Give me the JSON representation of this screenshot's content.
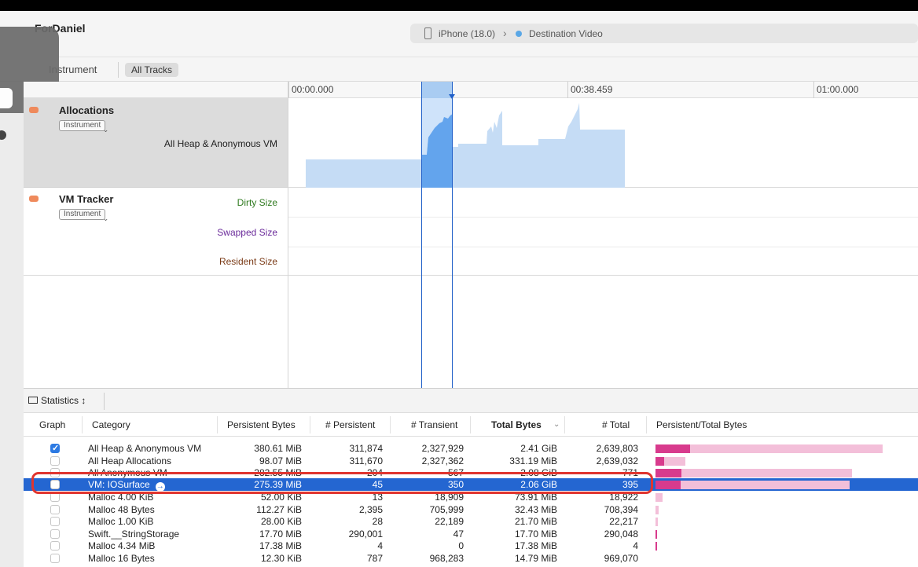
{
  "window": {
    "project_title": "ForDaniel",
    "device": "iPhone (18.0)",
    "target": "Destination Video"
  },
  "toolbar": {
    "instrument_tab": "Instrument",
    "all_tracks_tab": "All Tracks"
  },
  "ruler": {
    "labels": [
      "00:00.000",
      "00:38.459",
      "01:00.000"
    ]
  },
  "tracks": [
    {
      "title": "Allocations",
      "instrument_dropdown": "Instrument",
      "sublabels": [
        "All Heap & Anonymous VM"
      ],
      "color": "#ef8a5c"
    },
    {
      "title": "VM Tracker",
      "instrument_dropdown": "Instrument",
      "sublabels": [
        "Dirty Size",
        "Swapped Size",
        "Resident Size"
      ],
      "sublabel_colors": [
        "#2f7a1f",
        "#6a2a9a",
        "#7a3a16"
      ],
      "color": "#ef8a5c"
    }
  ],
  "stats": {
    "view_button": "Statistics",
    "columns": [
      "Graph",
      "Category",
      "Persistent Bytes",
      "# Persistent",
      "# Transient",
      "Total Bytes",
      "# Total",
      "Persistent/Total Bytes"
    ],
    "sort_column": "Total Bytes",
    "rows": [
      {
        "checked": true,
        "category": "All Heap & Anonymous VM",
        "persistent_bytes": "380.61 MiB",
        "persistent": "311,874",
        "transient": "2,327,929",
        "total_bytes": "2.41 GiB",
        "total": "2,639,803"
      },
      {
        "checked": false,
        "category": "All Heap Allocations",
        "persistent_bytes": "98.07 MiB",
        "persistent": "311,670",
        "transient": "2,327,362",
        "total_bytes": "331.19 MiB",
        "total": "2,639,032"
      },
      {
        "checked": false,
        "category": "All Anonymous VM",
        "persistent_bytes": "282.55 MiB",
        "persistent": "204",
        "transient": "567",
        "total_bytes": "2.08 GiB",
        "total": "771"
      },
      {
        "checked": false,
        "category": "VM: IOSurface",
        "persistent_bytes": "275.39 MiB",
        "persistent": "45",
        "transient": "350",
        "total_bytes": "2.06 GiB",
        "total": "395",
        "selected": true
      },
      {
        "checked": false,
        "category": "Malloc 4.00 KiB",
        "persistent_bytes": "52.00 KiB",
        "persistent": "13",
        "transient": "18,909",
        "total_bytes": "73.91 MiB",
        "total": "18,922"
      },
      {
        "checked": false,
        "category": "Malloc 48 Bytes",
        "persistent_bytes": "112.27 KiB",
        "persistent": "2,395",
        "transient": "705,999",
        "total_bytes": "32.43 MiB",
        "total": "708,394"
      },
      {
        "checked": false,
        "category": "Malloc 1.00 KiB",
        "persistent_bytes": "28.00 KiB",
        "persistent": "28",
        "transient": "22,189",
        "total_bytes": "21.70 MiB",
        "total": "22,217"
      },
      {
        "checked": false,
        "category": "Swift.__StringStorage",
        "persistent_bytes": "17.70 MiB",
        "persistent": "290,001",
        "transient": "47",
        "total_bytes": "17.70 MiB",
        "total": "290,048"
      },
      {
        "checked": false,
        "category": "Malloc 4.34 MiB",
        "persistent_bytes": "17.38 MiB",
        "persistent": "4",
        "transient": "0",
        "total_bytes": "17.38 MiB",
        "total": "4"
      },
      {
        "checked": false,
        "category": "Malloc 16 Bytes",
        "persistent_bytes": "12.30 KiB",
        "persistent": "787",
        "transient": "968,283",
        "total_bytes": "14.79 MiB",
        "total": "969,070"
      }
    ],
    "bar_colors": {
      "persistent": "#d83b8d",
      "total": "#f3bfd9",
      "selection": "#2466d1",
      "highlight": "#e0352f"
    }
  }
}
